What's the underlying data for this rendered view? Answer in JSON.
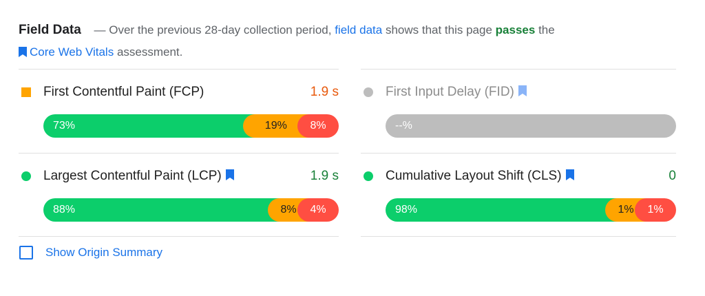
{
  "header": {
    "title": "Field Data",
    "dash": "—",
    "text1": "Over the previous 28-day collection period,",
    "field_data_link": "field data",
    "text2": "shows that this page",
    "passes": "passes",
    "text3": "the",
    "cwv_link": "Core Web Vitals",
    "text4": "assessment."
  },
  "metrics": {
    "fcp": {
      "name": "First Contentful Paint (FCP)",
      "value": "1.9 s",
      "value_color": "#e8590c",
      "indicator_color": "#ffa400",
      "good": 73,
      "avg": 19,
      "poor": 8,
      "good_label": "73%",
      "avg_label": "19%",
      "poor_label": "8%"
    },
    "fid": {
      "name": "First Input Delay (FID)",
      "na_label": "--%",
      "indicator_color": "#bdbdbd"
    },
    "lcp": {
      "name": "Largest Contentful Paint (LCP)",
      "value": "1.9 s",
      "value_color": "#188038",
      "indicator_color": "#0cce6b",
      "good": 88,
      "avg": 8,
      "poor": 4,
      "good_label": "88%",
      "avg_label": "8%",
      "poor_label": "4%"
    },
    "cls": {
      "name": "Cumulative Layout Shift (CLS)",
      "value": "0",
      "value_color": "#188038",
      "indicator_color": "#0cce6b",
      "good": 98,
      "avg": 1,
      "poor": 1,
      "good_label": "98%",
      "avg_label": "1%",
      "poor_label": "1%"
    }
  },
  "origin_summary": {
    "label": "Show Origin Summary",
    "checked": false
  },
  "icons": {
    "bookmark": "bookmark-icon",
    "checkbox": "checkbox-icon"
  },
  "colors": {
    "good": "#0cce6b",
    "average": "#ffa400",
    "poor": "#ff4e42",
    "link": "#1a73e8",
    "pass": "#188038"
  }
}
